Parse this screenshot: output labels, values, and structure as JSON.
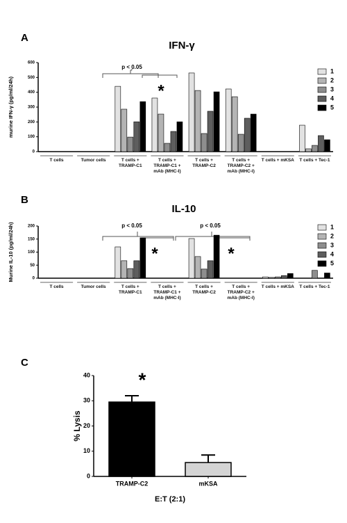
{
  "chart_data": [
    {
      "type": "bar",
      "panel": "A",
      "title": "IFN-γ",
      "y_label": "murine IFN-γ (pg/ml/24h)",
      "categories": [
        "T cells",
        "Tumor cells",
        "T cells + TRAMP-C1",
        "T cells + TRAMP-C1 + mAb (MHC-I)",
        "T cells + TRAMP-C2",
        "T cells + TRAMP-C2 + mAb (MHC-I)",
        "T cells + mKSA",
        "T cells + Tec-1"
      ],
      "series": [
        {
          "name": "1",
          "color": "#e2e2e2",
          "values": [
            0,
            0,
            440,
            361,
            530,
            422,
            0,
            178
          ]
        },
        {
          "name": "2",
          "color": "#b4b4b4",
          "values": [
            0,
            0,
            286,
            253,
            412,
            370,
            0,
            19
          ]
        },
        {
          "name": "3",
          "color": "#8e8e8e",
          "values": [
            0,
            0,
            98,
            56,
            122,
            117,
            0,
            42
          ]
        },
        {
          "name": "4",
          "color": "#5e5e5e",
          "values": [
            0,
            0,
            201,
            136,
            272,
            225,
            0,
            108
          ]
        },
        {
          "name": "5",
          "color": "#000000",
          "values": [
            0,
            0,
            337,
            201,
            403,
            253,
            0,
            80
          ]
        }
      ],
      "ylim": [
        0,
        600
      ],
      "yticks": [
        0,
        100,
        200,
        300,
        400,
        500,
        600
      ],
      "legend": "right",
      "annotations": [
        "p < 0.05",
        "*"
      ]
    },
    {
      "type": "bar",
      "panel": "B",
      "title": "IL-10",
      "y_label": "Murine IL-10 (pg/ml/24h)",
      "categories": [
        "T cells",
        "Tumor cells",
        "T cells + TRAMP-C1",
        "T cells + TRAMP-C1 + mAb (MHC-I)",
        "T cells + TRAMP-C2",
        "T cells + TRAMP-C2 + mAb (MHC-I)",
        "T cells + mKSA",
        "T cells + Tec-1"
      ],
      "series": [
        {
          "name": "1",
          "color": "#e2e2e2",
          "values": [
            0,
            0,
            120,
            0,
            152,
            0,
            5,
            0
          ]
        },
        {
          "name": "2",
          "color": "#b4b4b4",
          "values": [
            0,
            0,
            67,
            0,
            83,
            0,
            3,
            0
          ]
        },
        {
          "name": "3",
          "color": "#8e8e8e",
          "values": [
            0,
            0,
            37,
            0,
            35,
            0,
            5,
            30
          ]
        },
        {
          "name": "4",
          "color": "#5e5e5e",
          "values": [
            0,
            0,
            67,
            0,
            67,
            0,
            10,
            0
          ]
        },
        {
          "name": "5",
          "color": "#000000",
          "values": [
            0,
            0,
            155,
            0,
            165,
            0,
            18,
            20
          ]
        }
      ],
      "ylim": [
        0,
        200
      ],
      "yticks": [
        0,
        50,
        100,
        150,
        200
      ],
      "legend": "right",
      "annotations": [
        "p < 0.05",
        "p < 0.05",
        "*",
        "*"
      ]
    },
    {
      "type": "bar",
      "panel": "C",
      "y_label": "% Lysis",
      "x_label": "E:T (2:1)",
      "categories": [
        "TRAMP-C2",
        "mKSA"
      ],
      "values": [
        29.5,
        5.5
      ],
      "errors": [
        2.5,
        3
      ],
      "colors": [
        "#000000",
        "#d4d4d4"
      ],
      "ylim": [
        0,
        40
      ],
      "yticks": [
        0,
        10,
        20,
        30,
        40
      ],
      "annotations": [
        "*"
      ]
    }
  ]
}
